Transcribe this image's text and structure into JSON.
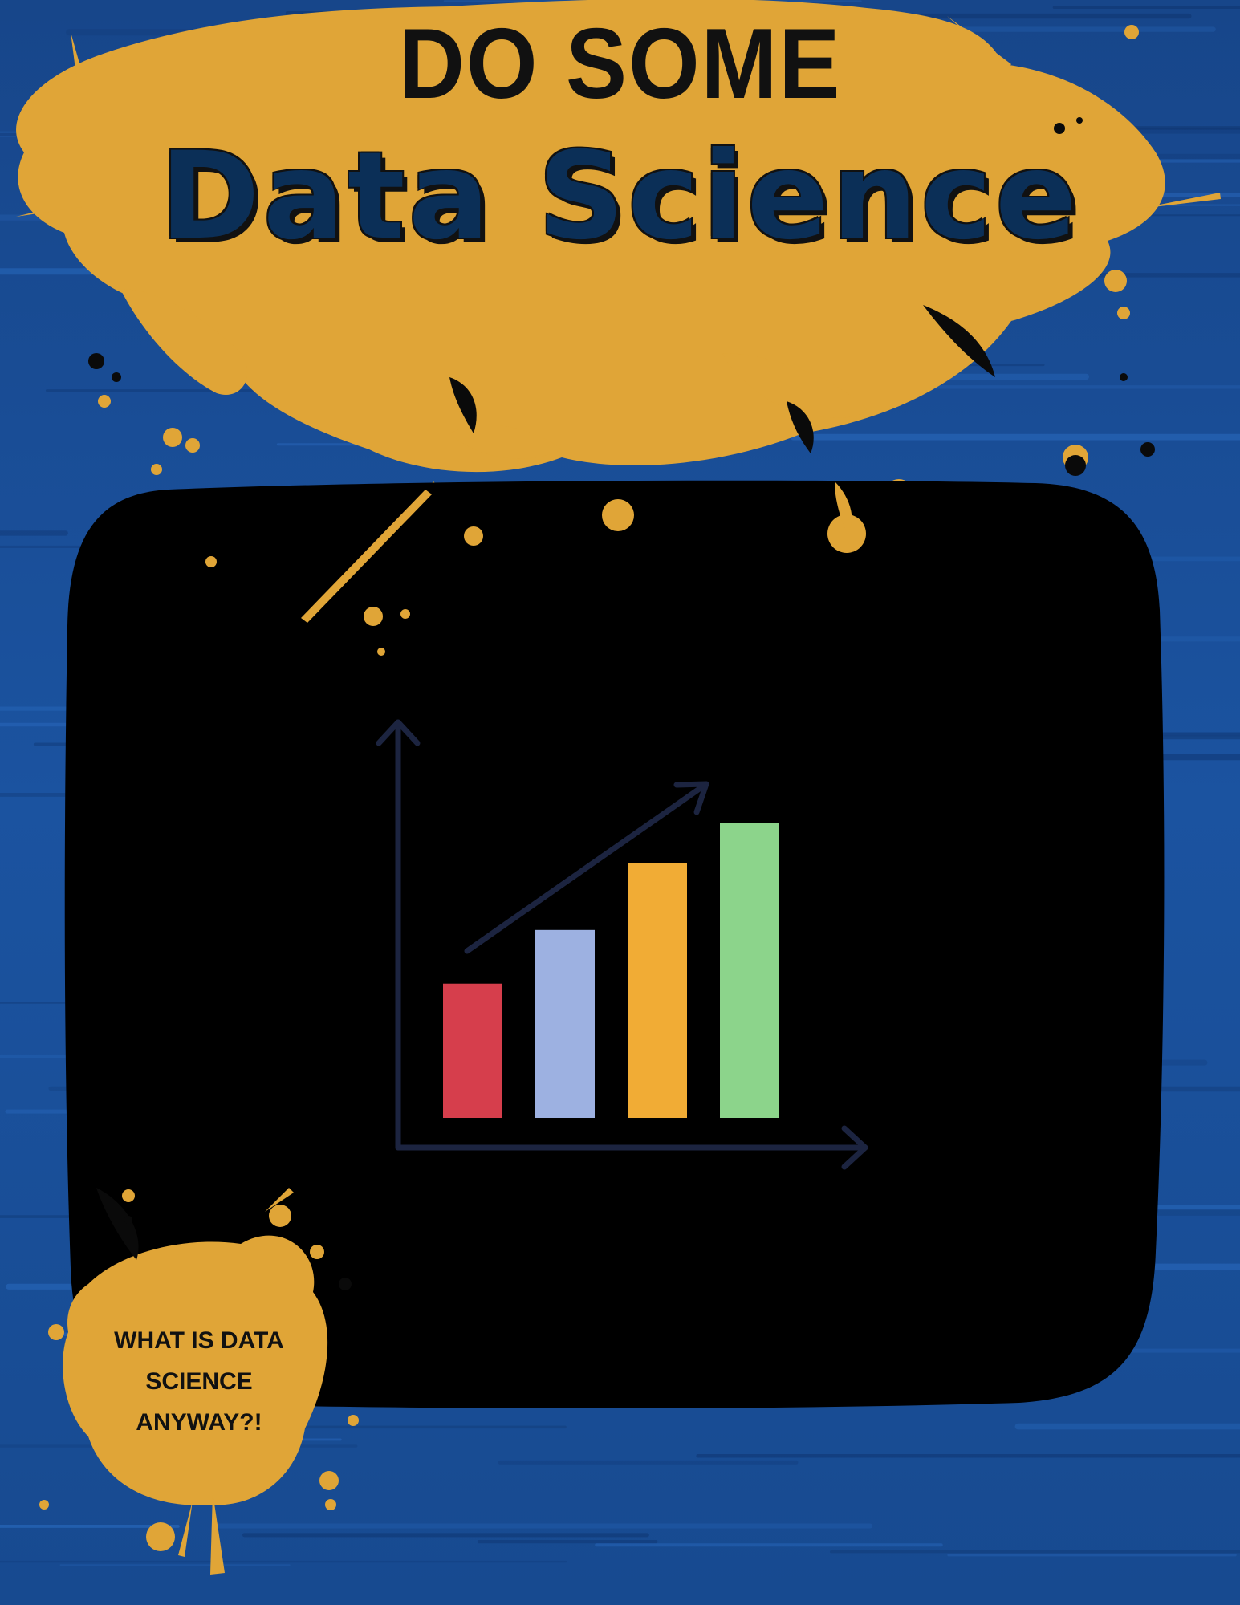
{
  "poster": {
    "kicker": "DO SOME",
    "title": "Data Science",
    "question": "WHAT IS DATA SCIENCE ANYWAY?!"
  },
  "colors": {
    "background": "#1a4f98",
    "background_streak": "#2a6bc0",
    "splatter": "#e0a537",
    "panel": "#000000",
    "title": "#0b2f57",
    "axis": "#1c2440"
  },
  "chart_data": {
    "type": "bar",
    "categories": [
      "",
      "",
      "",
      ""
    ],
    "values": [
      1,
      1.4,
      1.9,
      2.2
    ],
    "colors": [
      "#d63e4c",
      "#9db1e1",
      "#f1ac35",
      "#8cd48b"
    ],
    "title": "",
    "xlabel": "",
    "ylabel": "",
    "trend_arrow": true
  }
}
